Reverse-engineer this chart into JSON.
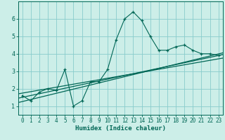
{
  "xlabel": "Humidex (Indice chaleur)",
  "background_color": "#cceee8",
  "grid_color": "#88cccc",
  "line_color": "#006655",
  "x_data": [
    0,
    1,
    2,
    3,
    4,
    5,
    6,
    7,
    8,
    9,
    10,
    11,
    12,
    13,
    14,
    15,
    16,
    17,
    18,
    19,
    20,
    21,
    22,
    23
  ],
  "y_data": [
    1.6,
    1.3,
    1.8,
    2.0,
    1.9,
    3.1,
    1.0,
    1.3,
    2.4,
    2.4,
    3.1,
    4.8,
    6.0,
    6.4,
    5.9,
    5.0,
    4.2,
    4.2,
    4.4,
    4.5,
    4.2,
    4.0,
    4.0,
    3.9
  ],
  "reg_lines": [
    [
      1.2,
      4.05
    ],
    [
      1.45,
      3.95
    ],
    [
      1.7,
      3.75
    ]
  ],
  "xlim": [
    -0.5,
    23.5
  ],
  "ylim": [
    0.5,
    7.0
  ],
  "yticks": [
    1,
    2,
    3,
    4,
    5,
    6
  ],
  "xticks": [
    0,
    1,
    2,
    3,
    4,
    5,
    6,
    7,
    8,
    9,
    10,
    11,
    12,
    13,
    14,
    15,
    16,
    17,
    18,
    19,
    20,
    21,
    22,
    23
  ],
  "tick_fontsize": 5.5,
  "xlabel_fontsize": 6.5
}
